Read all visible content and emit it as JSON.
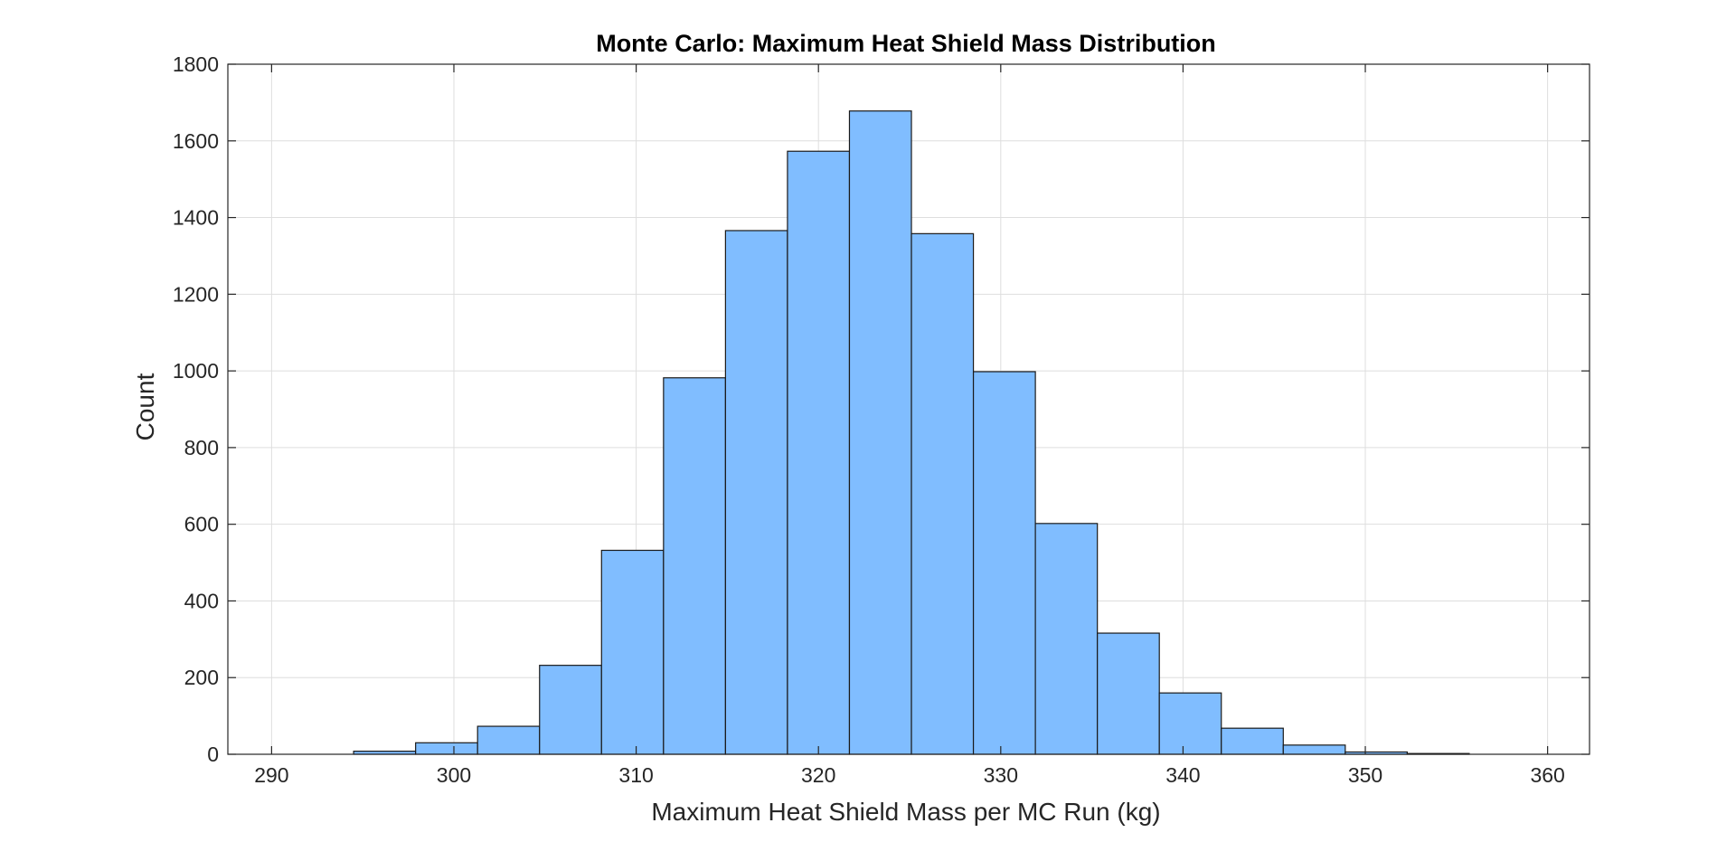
{
  "colors": {
    "bar_fill": "#80bdff",
    "bar_edge": "#1a1a1a",
    "grid": "#dedede",
    "axis": "#262626",
    "background": "#ffffff"
  },
  "chart_data": {
    "type": "bar",
    "title": "Monte Carlo: Maximum Heat Shield Mass Distribution",
    "xlabel": "Maximum Heat Shield Mass per MC Run (kg)",
    "ylabel": "Count",
    "xlim": [
      287.6,
      362.3
    ],
    "ylim": [
      0,
      1800
    ],
    "xticks": [
      290,
      300,
      310,
      320,
      330,
      340,
      350,
      360
    ],
    "yticks": [
      0,
      200,
      400,
      600,
      800,
      1000,
      1200,
      1400,
      1600,
      1800
    ],
    "grid": true,
    "bin_edges": [
      294.5,
      297.9,
      301.3,
      304.7,
      308.1,
      311.5,
      314.9,
      318.3,
      321.7,
      325.1,
      328.5,
      331.9,
      335.3,
      338.7,
      342.1,
      345.5,
      348.9,
      352.3,
      355.7
    ],
    "counts": [
      8,
      30,
      73,
      232,
      532,
      982,
      1366,
      1573,
      1678,
      1358,
      998,
      602,
      316,
      160,
      68,
      24,
      6,
      2
    ]
  }
}
